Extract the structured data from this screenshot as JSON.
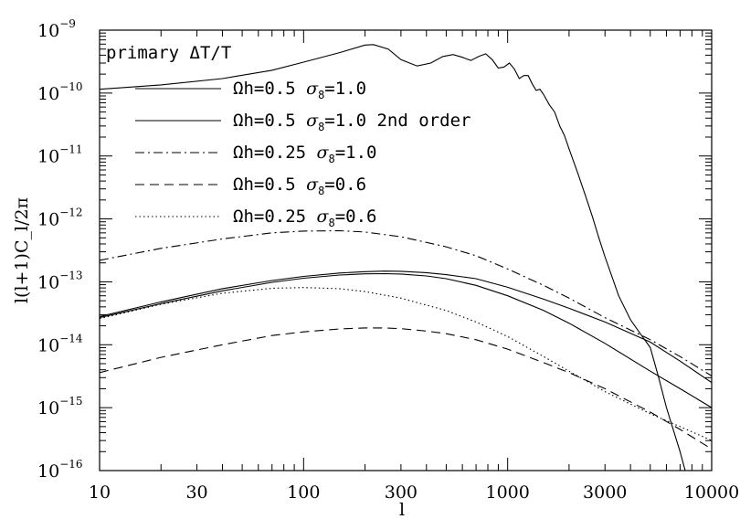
{
  "chart_data": {
    "type": "line",
    "xlabel": "l",
    "ylabel": "l(l+1)C_l/2π",
    "xscale": "log",
    "yscale": "log",
    "xlim": [
      10,
      10000
    ],
    "ylim": [
      1e-16,
      1e-09
    ],
    "x_ticks": [
      10,
      30,
      100,
      300,
      1000,
      3000,
      10000
    ],
    "x_tick_labels": [
      "10",
      "30",
      "100",
      "300",
      "1000",
      "3000",
      "10000"
    ],
    "y_ticks": [
      {
        "value": 1e-09,
        "base": "10",
        "exp": "−9"
      },
      {
        "value": 1e-10,
        "base": "10",
        "exp": "−10"
      },
      {
        "value": 1e-11,
        "base": "10",
        "exp": "−11"
      },
      {
        "value": 1e-12,
        "base": "10",
        "exp": "−12"
      },
      {
        "value": 1e-13,
        "base": "10",
        "exp": "−13"
      },
      {
        "value": 1e-14,
        "base": "10",
        "exp": "−14"
      },
      {
        "value": 1e-15,
        "base": "10",
        "exp": "−15"
      },
      {
        "value": 1e-16,
        "base": "10",
        "exp": "−16"
      }
    ],
    "annotation": "primary ΔT/T",
    "legend_position": "top-left",
    "series": [
      {
        "name": "primary ΔT/T",
        "style": "solid",
        "x": [
          10,
          20,
          40,
          70,
          100,
          150,
          200,
          220,
          260,
          300,
          360,
          420,
          480,
          540,
          600,
          660,
          720,
          780,
          840,
          900,
          960,
          1020,
          1080,
          1140,
          1200,
          1260,
          1320,
          1380,
          1440,
          1500,
          1600,
          1700,
          1800,
          1900,
          2000,
          2200,
          2400,
          2600,
          2800,
          3000,
          3500,
          4000,
          4500,
          5000,
          5500,
          6000,
          7000,
          8000
        ],
        "y": [
          1.15e-10,
          1.35e-10,
          1.7e-10,
          2.3e-10,
          3.1e-10,
          4.4e-10,
          5.8e-10,
          5.9e-10,
          5e-10,
          3.4e-10,
          2.7e-10,
          3e-10,
          3.8e-10,
          4.1e-10,
          3.7e-10,
          3.3e-10,
          3.8e-10,
          4.2e-10,
          3.4e-10,
          2.5e-10,
          2.6e-10,
          3e-10,
          2.4e-10,
          1.7e-10,
          1.9e-10,
          1.9e-10,
          1.4e-10,
          1.1e-10,
          1.15e-10,
          9.5e-11,
          6.5e-11,
          5e-11,
          3e-11,
          2.1e-11,
          1.3e-11,
          5.5e-12,
          2.4e-12,
          1.1e-12,
          5e-13,
          2.5e-13,
          6e-14,
          2.5e-14,
          1.45e-14,
          9e-15,
          3e-15,
          1e-15,
          2e-16,
          4e-17
        ]
      },
      {
        "name": "Ωh=0.5  σ8=1.0",
        "style": "solid",
        "x": [
          10,
          20,
          40,
          70,
          100,
          150,
          200,
          250,
          300,
          400,
          500,
          700,
          1000,
          1500,
          2000,
          3000,
          5000,
          7000,
          10000
        ],
        "y": [
          2.8e-14,
          4.8e-14,
          7.8e-14,
          1.05e-13,
          1.22e-13,
          1.38e-13,
          1.45e-13,
          1.48e-13,
          1.47e-13,
          1.4e-13,
          1.3e-13,
          1.12e-13,
          8.2e-14,
          5.3e-14,
          3.8e-14,
          2.3e-14,
          1.1e-14,
          5.5e-15,
          2.5e-15
        ]
      },
      {
        "name": "Ωh=0.5  σ8=1.0 2nd order",
        "style": "solid",
        "x": [
          10,
          20,
          40,
          70,
          100,
          150,
          200,
          250,
          300,
          400,
          500,
          700,
          1000,
          1500,
          2000,
          3000,
          5000,
          7000,
          10000
        ],
        "y": [
          2.7e-14,
          4.5e-14,
          7.2e-14,
          9.8e-14,
          1.14e-13,
          1.28e-13,
          1.34e-13,
          1.35e-13,
          1.33e-13,
          1.24e-13,
          1.12e-13,
          8.8e-14,
          6e-14,
          3.5e-14,
          2.2e-14,
          1.05e-14,
          3.8e-15,
          2e-15,
          1e-15
        ]
      },
      {
        "name": "Ωh=0.25  σ8=1.0",
        "style": "dashdot",
        "x": [
          10,
          20,
          40,
          70,
          100,
          150,
          200,
          300,
          500,
          700,
          1000,
          1500,
          2000,
          3000,
          5000,
          7000,
          10000
        ],
        "y": [
          2.2e-13,
          3.4e-13,
          4.8e-13,
          6e-13,
          6.4e-13,
          6.5e-13,
          6.2e-13,
          5.2e-13,
          3.6e-13,
          2.6e-13,
          1.6e-13,
          8.8e-14,
          5.5e-14,
          2.7e-14,
          1.2e-14,
          6.5e-15,
          3.2e-15
        ]
      },
      {
        "name": "Ωh=0.5  σ8=0.6",
        "style": "dashed",
        "x": [
          10,
          20,
          40,
          70,
          100,
          150,
          200,
          250,
          300,
          400,
          500,
          700,
          1000,
          1500,
          2000,
          3000,
          5000,
          7000,
          10000
        ],
        "y": [
          3.6e-15,
          6.3e-15,
          1e-14,
          1.4e-14,
          1.6e-14,
          1.78e-14,
          1.85e-14,
          1.85e-14,
          1.8e-14,
          1.65e-14,
          1.5e-14,
          1.2e-14,
          8.5e-15,
          5.2e-15,
          3.6e-15,
          2e-15,
          8.5e-16,
          4.5e-16,
          2.2e-16
        ]
      },
      {
        "name": "Ωh=0.25  σ8=0.6",
        "style": "dotted",
        "x": [
          10,
          20,
          40,
          70,
          100,
          150,
          200,
          300,
          500,
          700,
          1000,
          1500,
          2000,
          3000,
          5000,
          7000,
          10000
        ],
        "y": [
          2.6e-14,
          4.4e-14,
          6.6e-14,
          7.9e-14,
          8.1e-14,
          7.8e-14,
          7e-14,
          5.5e-14,
          3.5e-14,
          2.3e-14,
          1.35e-14,
          6.5e-15,
          3.8e-15,
          1.8e-15,
          8e-16,
          5e-16,
          3e-16
        ]
      }
    ],
    "legend": [
      {
        "series": 1,
        "parts": [
          "Ωh=0.5  ",
          "σ",
          "8",
          "=1.0"
        ]
      },
      {
        "series": 2,
        "parts": [
          "Ωh=0.5  ",
          "σ",
          "8",
          "=1.0 2nd order"
        ]
      },
      {
        "series": 3,
        "parts": [
          "Ωh=0.25  ",
          "σ",
          "8",
          "=1.0"
        ]
      },
      {
        "series": 4,
        "parts": [
          "Ωh=0.5  ",
          "σ",
          "8",
          "=0.6"
        ]
      },
      {
        "series": 5,
        "parts": [
          "Ωh=0.25  ",
          "σ",
          "8",
          "=0.6"
        ]
      }
    ],
    "grid": false
  }
}
